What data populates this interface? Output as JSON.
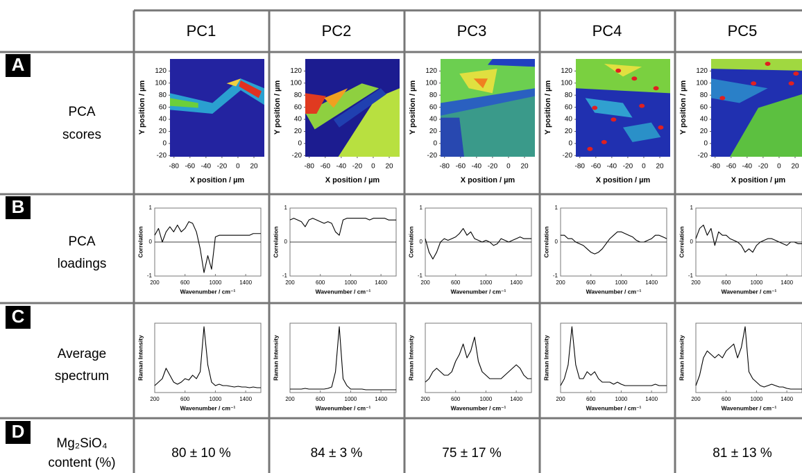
{
  "columns": [
    "PC1",
    "PC2",
    "PC3",
    "PC4",
    "PC5"
  ],
  "rows": [
    {
      "letter": "A",
      "label": [
        "PCA",
        "scores"
      ]
    },
    {
      "letter": "B",
      "label": [
        "PCA",
        "loadings"
      ]
    },
    {
      "letter": "C",
      "label": [
        "Average",
        "spectrum"
      ]
    },
    {
      "letter": "D",
      "label": [
        "Mg₂SiO₄",
        "content (%)"
      ]
    }
  ],
  "scores": {
    "xlabel": "X position / µm",
    "ylabel": "Y position / µm",
    "xlim": [
      -85,
      33
    ],
    "ylim": [
      -22,
      140
    ],
    "xticks": [
      -80,
      -60,
      -40,
      -20,
      0,
      20
    ],
    "yticks": [
      -20,
      0,
      20,
      40,
      60,
      80,
      100,
      120
    ]
  },
  "loadings": {
    "type": "line",
    "xlabel": "Wavenumber / cm⁻¹",
    "ylabel": "Correlation",
    "xlim": [
      200,
      1600
    ],
    "ylim": [
      -1,
      1
    ],
    "xticks": [
      200,
      600,
      1000,
      1400
    ],
    "yticks": [
      -1,
      0,
      1
    ],
    "x": [
      200,
      250,
      300,
      350,
      400,
      450,
      500,
      550,
      600,
      650,
      700,
      750,
      800,
      850,
      900,
      950,
      1000,
      1050,
      1100,
      1150,
      1200,
      1250,
      1300,
      1350,
      1400,
      1450,
      1500,
      1550,
      1600
    ],
    "series": [
      {
        "color": "#000000",
        "values": [
          0.2,
          0.4,
          0,
          0.3,
          0.45,
          0.3,
          0.5,
          0.3,
          0.4,
          0.6,
          0.55,
          0.3,
          -0.2,
          -0.9,
          -0.4,
          -0.8,
          0.15,
          0.2,
          0.2,
          0.2,
          0.2,
          0.2,
          0.2,
          0.2,
          0.2,
          0.2,
          0.25,
          0.25,
          0.25
        ]
      },
      {
        "color": "#000000",
        "values": [
          0.65,
          0.7,
          0.65,
          0.6,
          0.45,
          0.65,
          0.7,
          0.65,
          0.6,
          0.55,
          0.6,
          0.55,
          0.3,
          0.2,
          0.65,
          0.7,
          0.7,
          0.7,
          0.7,
          0.7,
          0.7,
          0.65,
          0.7,
          0.7,
          0.7,
          0.7,
          0.65,
          0.65,
          0.65
        ]
      },
      {
        "color": "#000000",
        "values": [
          0.1,
          -0.3,
          -0.5,
          -0.3,
          0,
          0.1,
          0.05,
          0.1,
          0.15,
          0.25,
          0.4,
          0.2,
          0.3,
          0.1,
          0.05,
          0,
          0.05,
          0,
          -0.1,
          -0.05,
          0.1,
          0.05,
          0,
          0.05,
          0.1,
          0.15,
          0.1,
          0.1,
          0.1
        ]
      },
      {
        "color": "#000000",
        "values": [
          0.2,
          0.2,
          0.1,
          0.1,
          0,
          -0.05,
          -0.1,
          -0.2,
          -0.3,
          -0.35,
          -0.3,
          -0.2,
          -0.05,
          0.1,
          0.2,
          0.3,
          0.3,
          0.25,
          0.2,
          0.15,
          0.05,
          0,
          0,
          0.05,
          0.1,
          0.2,
          0.2,
          0.15,
          0.1
        ]
      },
      {
        "color": "#000000",
        "values": [
          0.1,
          0.4,
          0.5,
          0.2,
          0.4,
          -0.1,
          0.3,
          0.2,
          0.2,
          0.1,
          0.05,
          0,
          -0.1,
          -0.3,
          -0.2,
          -0.3,
          -0.1,
          0,
          0.05,
          0.1,
          0.1,
          0.05,
          0,
          -0.05,
          -0.1,
          0,
          0,
          -0.05,
          -0.05
        ]
      }
    ]
  },
  "spectra": {
    "type": "line",
    "xlabel": "Wavenumber / cm⁻¹",
    "ylabel": "Raman Intensity",
    "xlim": [
      200,
      1600
    ],
    "ylim": [
      0,
      1
    ],
    "xticks": [
      200,
      600,
      1000,
      1400
    ],
    "x": [
      200,
      250,
      300,
      350,
      400,
      450,
      500,
      550,
      600,
      650,
      700,
      750,
      800,
      850,
      900,
      950,
      1000,
      1050,
      1100,
      1150,
      1200,
      1250,
      1300,
      1350,
      1400,
      1450,
      1500,
      1550,
      1600
    ],
    "series": [
      {
        "color": "#000000",
        "values": [
          0.1,
          0.15,
          0.2,
          0.35,
          0.25,
          0.15,
          0.12,
          0.15,
          0.2,
          0.18,
          0.25,
          0.2,
          0.3,
          0.95,
          0.4,
          0.15,
          0.1,
          0.12,
          0.1,
          0.1,
          0.09,
          0.08,
          0.09,
          0.08,
          0.08,
          0.07,
          0.08,
          0.07,
          0.07
        ]
      },
      {
        "color": "#000000",
        "values": [
          0.05,
          0.05,
          0.05,
          0.05,
          0.06,
          0.05,
          0.05,
          0.05,
          0.05,
          0.05,
          0.06,
          0.08,
          0.3,
          0.95,
          0.2,
          0.1,
          0.05,
          0.05,
          0.05,
          0.05,
          0.04,
          0.04,
          0.04,
          0.04,
          0.04,
          0.04,
          0.04,
          0.04,
          0.04
        ]
      },
      {
        "color": "#000000",
        "values": [
          0.15,
          0.2,
          0.3,
          0.35,
          0.3,
          0.25,
          0.25,
          0.3,
          0.45,
          0.55,
          0.7,
          0.5,
          0.6,
          0.8,
          0.45,
          0.3,
          0.25,
          0.2,
          0.2,
          0.2,
          0.2,
          0.25,
          0.3,
          0.35,
          0.4,
          0.35,
          0.25,
          0.2,
          0.2
        ]
      },
      {
        "color": "#000000",
        "values": [
          0.1,
          0.2,
          0.4,
          0.95,
          0.4,
          0.2,
          0.2,
          0.3,
          0.25,
          0.3,
          0.2,
          0.15,
          0.15,
          0.15,
          0.12,
          0.15,
          0.12,
          0.1,
          0.1,
          0.1,
          0.1,
          0.1,
          0.1,
          0.1,
          0.1,
          0.12,
          0.1,
          0.1,
          0.1
        ]
      },
      {
        "color": "#000000",
        "values": [
          0.1,
          0.25,
          0.5,
          0.6,
          0.55,
          0.5,
          0.55,
          0.5,
          0.6,
          0.65,
          0.7,
          0.5,
          0.65,
          0.95,
          0.3,
          0.2,
          0.15,
          0.1,
          0.08,
          0.1,
          0.12,
          0.1,
          0.08,
          0.08,
          0.06,
          0.05,
          0.05,
          0.05,
          0.05
        ]
      }
    ]
  },
  "content": [
    "80 ± 10 %",
    "84 ± 3 %",
    "75 ± 17 %",
    null,
    "81 ± 13 %"
  ]
}
